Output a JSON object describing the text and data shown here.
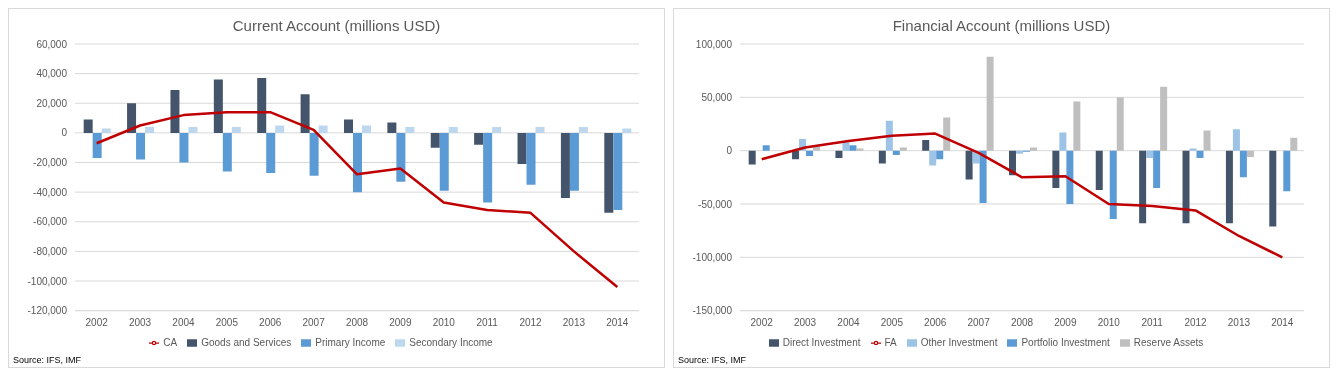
{
  "chart_data": [
    {
      "type": "bar",
      "title": "Current Account (millions  USD)",
      "categories": [
        "2002",
        "2003",
        "2004",
        "2005",
        "2006",
        "2007",
        "2008",
        "2009",
        "2010",
        "2011",
        "2012",
        "2013",
        "2014"
      ],
      "series": [
        {
          "name": "Goods and Services",
          "color": "#44546a",
          "values": [
            9000,
            20000,
            29000,
            36000,
            37000,
            26000,
            9000,
            7000,
            -10000,
            -8000,
            -21000,
            -44000,
            -54000
          ]
        },
        {
          "name": "Primary Income",
          "color": "#5b9bd5",
          "values": [
            -17000,
            -18000,
            -20000,
            -26000,
            -27000,
            -29000,
            -40000,
            -33000,
            -39000,
            -47000,
            -35000,
            -39000,
            -52000
          ]
        },
        {
          "name": "Secondary Income",
          "color": "#bdd7ee",
          "values": [
            3000,
            4000,
            4000,
            4000,
            5000,
            5000,
            5000,
            4000,
            4000,
            4000,
            4000,
            4000,
            3000
          ]
        },
        {
          "name": "CA",
          "type": "line",
          "color": "#c00000",
          "values": [
            -7000,
            5000,
            12000,
            14000,
            14000,
            2000,
            -28000,
            -24000,
            -47000,
            -52000,
            -54000,
            -80000,
            -104000
          ]
        }
      ],
      "ylim": [
        -120000,
        60000
      ],
      "yticks": [
        {
          "value": -120000,
          "label": "-120,000"
        },
        {
          "value": -100000,
          "label": "-100,000"
        },
        {
          "value": -80000,
          "label": "-80,000"
        },
        {
          "value": -60000,
          "label": "-60,000"
        },
        {
          "value": -40000,
          "label": "-40,000"
        },
        {
          "value": -20000,
          "label": "-20,000"
        },
        0,
        {
          "value": 20000,
          "label": "20,000"
        },
        {
          "value": 40000,
          "label": "40,000"
        },
        {
          "value": 60000,
          "label": "60,000"
        }
      ],
      "grid": "y",
      "legend": "bottom",
      "marker": "none",
      "annotations": [
        "Source: IFS,  IMF"
      ]
    },
    {
      "type": "bar",
      "title": "Financial Account (millions  USD)",
      "categories": [
        "2002",
        "2003",
        "2004",
        "2005",
        "2006",
        "2007",
        "2008",
        "2009",
        "2010",
        "2011",
        "2012",
        "2013",
        "2014"
      ],
      "series": [
        {
          "name": "Direct Investment",
          "color": "#44546a",
          "values": [
            -13000,
            -8000,
            -7000,
            -12000,
            10000,
            -27000,
            -23000,
            -35000,
            -37000,
            -68000,
            -68000,
            -68000,
            -71000
          ]
        },
        {
          "name": "Other Investment",
          "color": "#9dc3e6",
          "values": [
            0,
            11000,
            8000,
            28000,
            -14000,
            -12000,
            -3000,
            17000,
            0,
            -7000,
            2000,
            20000,
            0
          ]
        },
        {
          "name": "Portfolio Investment",
          "color": "#5b9bd5",
          "values": [
            5000,
            -5000,
            5000,
            -4000,
            -8000,
            -49000,
            -1000,
            -50000,
            -64000,
            -35000,
            -7000,
            -25000,
            -38000
          ]
        },
        {
          "name": "Reserve Assets",
          "color": "#bfbfbf",
          "values": [
            null,
            4000,
            2000,
            3000,
            31000,
            88000,
            3000,
            46000,
            50000,
            60000,
            19000,
            -6000,
            12000
          ]
        },
        {
          "name": "FA",
          "type": "line",
          "color": "#c00000",
          "values": [
            -8000,
            3000,
            9000,
            14000,
            16000,
            -2000,
            -25000,
            -24000,
            -50000,
            -52000,
            -56000,
            -80000,
            -100000
          ]
        }
      ],
      "ylim": [
        -150000,
        100000
      ],
      "yticks": [
        {
          "value": -150000,
          "label": "-150,000"
        },
        {
          "value": -100000,
          "label": "-100,000"
        },
        {
          "value": -50000,
          "label": "-50,000"
        },
        0,
        {
          "value": 50000,
          "label": "50,000"
        },
        {
          "value": 100000,
          "label": "100,000"
        }
      ],
      "grid": "y",
      "legend": "bottom",
      "marker": "none",
      "annotations": [
        "Source: IFS,  IMF"
      ]
    }
  ]
}
